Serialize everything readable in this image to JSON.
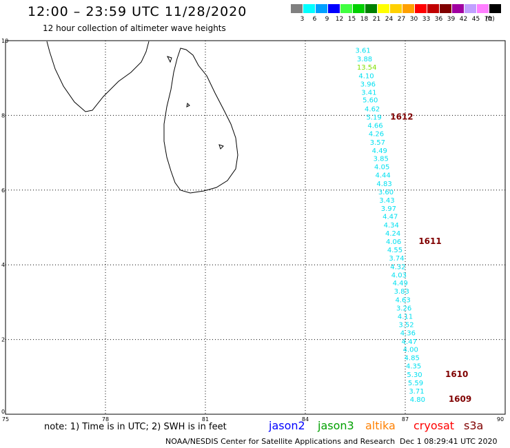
{
  "header": {
    "title": "12:00 – 23:59 UTC 11/28/2020",
    "subtitle": "12 hour collection of altimeter wave heights"
  },
  "color_scale": {
    "unit": "(ft)",
    "items": [
      {
        "label": "3",
        "color": "#808080"
      },
      {
        "label": "6",
        "color": "#00ffff"
      },
      {
        "label": "9",
        "color": "#00a0ff"
      },
      {
        "label": "12",
        "color": "#0000ff"
      },
      {
        "label": "15",
        "color": "#40ff40"
      },
      {
        "label": "18",
        "color": "#00d000"
      },
      {
        "label": "21",
        "color": "#008000"
      },
      {
        "label": "24",
        "color": "#ffff00"
      },
      {
        "label": "27",
        "color": "#ffd000"
      },
      {
        "label": "30",
        "color": "#ffa000"
      },
      {
        "label": "33",
        "color": "#ff0000"
      },
      {
        "label": "36",
        "color": "#c00000"
      },
      {
        "label": "39",
        "color": "#800000"
      },
      {
        "label": "42",
        "color": "#a000a0"
      },
      {
        "label": "45",
        "color": "#c0a0ff"
      },
      {
        "label": "70",
        "color": "#ff80ff"
      },
      {
        "label": "",
        "color": "#000000"
      }
    ]
  },
  "axes": {
    "x_ticks": [
      "75",
      "78",
      "81",
      "84",
      "87",
      "90"
    ],
    "y_ticks": [
      "0",
      "2",
      "4",
      "6",
      "8",
      "10"
    ]
  },
  "track": {
    "color": "#00e0f0",
    "highlight_color": "#80e000",
    "points": [
      {
        "lon": 85.5,
        "lat": 9.75,
        "swh": "3.61"
      },
      {
        "lon": 85.55,
        "lat": 9.52,
        "swh": "3.88"
      },
      {
        "lon": 85.55,
        "lat": 9.3,
        "swh": "13.54",
        "highlight": true
      },
      {
        "lon": 85.6,
        "lat": 9.07,
        "swh": "4.10"
      },
      {
        "lon": 85.65,
        "lat": 8.85,
        "swh": "3.96"
      },
      {
        "lon": 85.68,
        "lat": 8.63,
        "swh": "3.41"
      },
      {
        "lon": 85.72,
        "lat": 8.42,
        "swh": "5.60"
      },
      {
        "lon": 85.78,
        "lat": 8.18,
        "swh": "4.62"
      },
      {
        "lon": 85.83,
        "lat": 7.96,
        "swh": "5.19"
      },
      {
        "lon": 85.87,
        "lat": 7.74,
        "swh": "4.66"
      },
      {
        "lon": 85.9,
        "lat": 7.52,
        "swh": "4.26"
      },
      {
        "lon": 85.94,
        "lat": 7.29,
        "swh": "3.57"
      },
      {
        "lon": 86.0,
        "lat": 7.07,
        "swh": "4.49"
      },
      {
        "lon": 86.04,
        "lat": 6.85,
        "swh": "3.85"
      },
      {
        "lon": 86.07,
        "lat": 6.63,
        "swh": "4.05"
      },
      {
        "lon": 86.1,
        "lat": 6.41,
        "swh": "4.44"
      },
      {
        "lon": 86.14,
        "lat": 6.18,
        "swh": "4.83"
      },
      {
        "lon": 86.19,
        "lat": 5.96,
        "swh": "3.60"
      },
      {
        "lon": 86.22,
        "lat": 5.74,
        "swh": "3.43"
      },
      {
        "lon": 86.27,
        "lat": 5.52,
        "swh": "3.97"
      },
      {
        "lon": 86.32,
        "lat": 5.3,
        "swh": "4.47"
      },
      {
        "lon": 86.35,
        "lat": 5.07,
        "swh": "4.34"
      },
      {
        "lon": 86.4,
        "lat": 4.85,
        "swh": "4.24"
      },
      {
        "lon": 86.42,
        "lat": 4.63,
        "swh": "4.06"
      },
      {
        "lon": 86.46,
        "lat": 4.41,
        "swh": "4.55"
      },
      {
        "lon": 86.51,
        "lat": 4.19,
        "swh": "3.74"
      },
      {
        "lon": 86.55,
        "lat": 3.96,
        "swh": "4.32"
      },
      {
        "lon": 86.58,
        "lat": 3.74,
        "swh": "4.03"
      },
      {
        "lon": 86.62,
        "lat": 3.52,
        "swh": "4.49"
      },
      {
        "lon": 86.66,
        "lat": 3.3,
        "swh": "3.83"
      },
      {
        "lon": 86.7,
        "lat": 3.07,
        "swh": "4.63"
      },
      {
        "lon": 86.73,
        "lat": 2.85,
        "swh": "3.26"
      },
      {
        "lon": 86.77,
        "lat": 2.63,
        "swh": "4.11"
      },
      {
        "lon": 86.8,
        "lat": 2.41,
        "swh": "3.52"
      },
      {
        "lon": 86.85,
        "lat": 2.19,
        "swh": "4.36"
      },
      {
        "lon": 86.89,
        "lat": 1.96,
        "swh": "4.47"
      },
      {
        "lon": 86.93,
        "lat": 1.74,
        "swh": "4.00"
      },
      {
        "lon": 86.97,
        "lat": 1.52,
        "swh": "4.85"
      },
      {
        "lon": 87.02,
        "lat": 1.3,
        "swh": "4.35"
      },
      {
        "lon": 87.05,
        "lat": 1.07,
        "swh": "5.30"
      },
      {
        "lon": 87.08,
        "lat": 0.85,
        "swh": "5.59"
      },
      {
        "lon": 87.11,
        "lat": 0.63,
        "swh": "3.71"
      },
      {
        "lon": 87.14,
        "lat": 0.41,
        "swh": "4.80"
      }
    ],
    "time_labels": [
      {
        "lon": 86.55,
        "lat": 7.96,
        "text": "1612"
      },
      {
        "lon": 87.4,
        "lat": 4.63,
        "text": "1611"
      },
      {
        "lon": 88.2,
        "lat": 1.07,
        "text": "1610"
      },
      {
        "lon": 88.3,
        "lat": 0.41,
        "text": "1609"
      }
    ],
    "time_label_color": "#800000"
  },
  "footer": {
    "note": "note: 1) Time is in UTC; 2) SWH is in feet",
    "satellites": [
      {
        "name": "jason2",
        "color": "#0000ff"
      },
      {
        "name": "jason3",
        "color": "#00a000"
      },
      {
        "name": "altika",
        "color": "#ff8000"
      },
      {
        "name": "cryosat",
        "color": "#ff0000"
      },
      {
        "name": "s3a",
        "color": "#800000"
      }
    ],
    "credit": "NOAA/NESDIS Center for Satellite Applications and Research",
    "timestamp": "Dec  1 08:29:41 UTC 2020"
  }
}
